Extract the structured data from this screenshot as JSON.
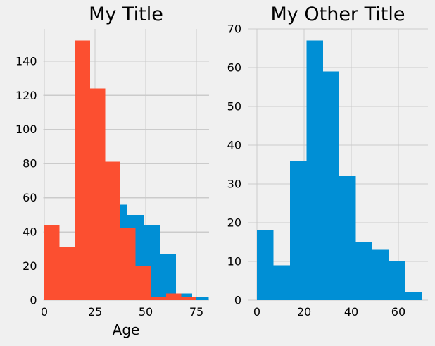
{
  "figure": {
    "background_color": "#f0f0f0",
    "grid_color": "#cbcbcb",
    "text_color": "#000000",
    "accent_blue": "#008fd5",
    "accent_orange": "#fc4f30"
  },
  "chart_data": [
    {
      "type": "histogram",
      "title": "My Title",
      "xlabel": "Age",
      "ylabel": "",
      "grid": true,
      "legend": "none",
      "xticks": [
        0,
        25,
        50,
        75
      ],
      "yticks": [
        0,
        20,
        40,
        60,
        80,
        100,
        120,
        140
      ],
      "xlim": [
        -0.52,
        81.25
      ],
      "ylim": [
        0,
        158.9
      ],
      "series": [
        {
          "name": "blue-histogram-behind",
          "color": "#008fd5",
          "bin_start": 33,
          "bin_width": 8,
          "counts": [
            56,
            50,
            44,
            27,
            4,
            2
          ]
        },
        {
          "name": "orange-histogram-front",
          "color": "#fc4f30",
          "bin_start": 0,
          "bin_width": 7.5,
          "counts": [
            44,
            31,
            152,
            124,
            81,
            42,
            20,
            2,
            4,
            2
          ]
        }
      ]
    },
    {
      "type": "histogram",
      "title": "My Other Title",
      "xlabel": "",
      "ylabel": "",
      "grid": true,
      "legend": "none",
      "xticks": [
        0,
        20,
        40,
        60
      ],
      "yticks": [
        0,
        10,
        20,
        30,
        40,
        50,
        60,
        70
      ],
      "xlim": [
        -3.88,
        72.54
      ],
      "ylim": [
        0,
        70.0
      ],
      "series": [
        {
          "name": "blue-histogram",
          "color": "#008fd5",
          "bin_start": 0,
          "bin_width": 7,
          "counts": [
            18,
            9,
            36,
            67,
            59,
            32,
            15,
            13,
            10,
            2
          ]
        }
      ]
    }
  ]
}
